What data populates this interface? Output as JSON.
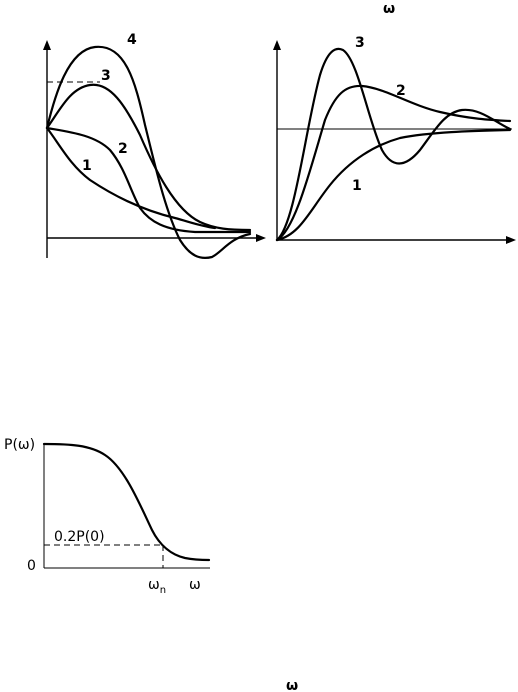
{
  "header_symbol": "ω",
  "footer_symbol": "ω",
  "left_plot": {
    "curve_labels": [
      "1",
      "2",
      "3",
      "4"
    ]
  },
  "right_plot": {
    "curve_labels": [
      "1",
      "2",
      "3"
    ]
  },
  "bottom_plot": {
    "y_axis_label": "P(ω)",
    "y_zero_label": "0",
    "threshold_label": "0.2P(0)",
    "x_cutoff_label": "ω",
    "x_cutoff_subscript": "n",
    "x_axis_label": "ω"
  }
}
